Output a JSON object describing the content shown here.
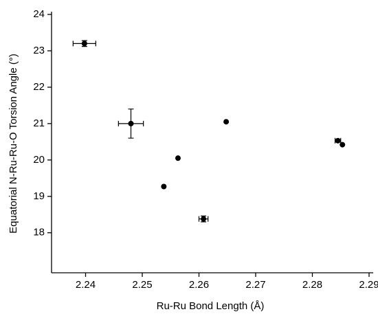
{
  "chart_data": {
    "type": "scatter",
    "x_label": "Ru-Ru Bond Length (Å)",
    "y_label": "Equatorial N-Ru-Ru-O Torsion Angle (°)",
    "xlim": [
      2.234,
      2.29
    ],
    "ylim": [
      16.9,
      24
    ],
    "xticks": [
      2.24,
      2.25,
      2.26,
      2.27,
      2.28,
      2.29
    ],
    "yticks": [
      18,
      19,
      20,
      21,
      22,
      23,
      24
    ],
    "series": [
      {
        "color": "#000000",
        "x": [
          2.2398,
          2.248,
          2.2538,
          2.2563,
          2.2608,
          2.2648,
          2.2845,
          2.2853
        ],
        "values": [
          23.2,
          21.0,
          19.27,
          20.05,
          18.38,
          21.05,
          20.53,
          20.42
        ],
        "xerr": [
          0.002,
          0.0022,
          null,
          null,
          0.0008,
          null,
          0.0005,
          null
        ],
        "yerr": [
          0.08,
          0.4,
          null,
          null,
          0.08,
          null,
          null,
          null
        ]
      }
    ]
  }
}
